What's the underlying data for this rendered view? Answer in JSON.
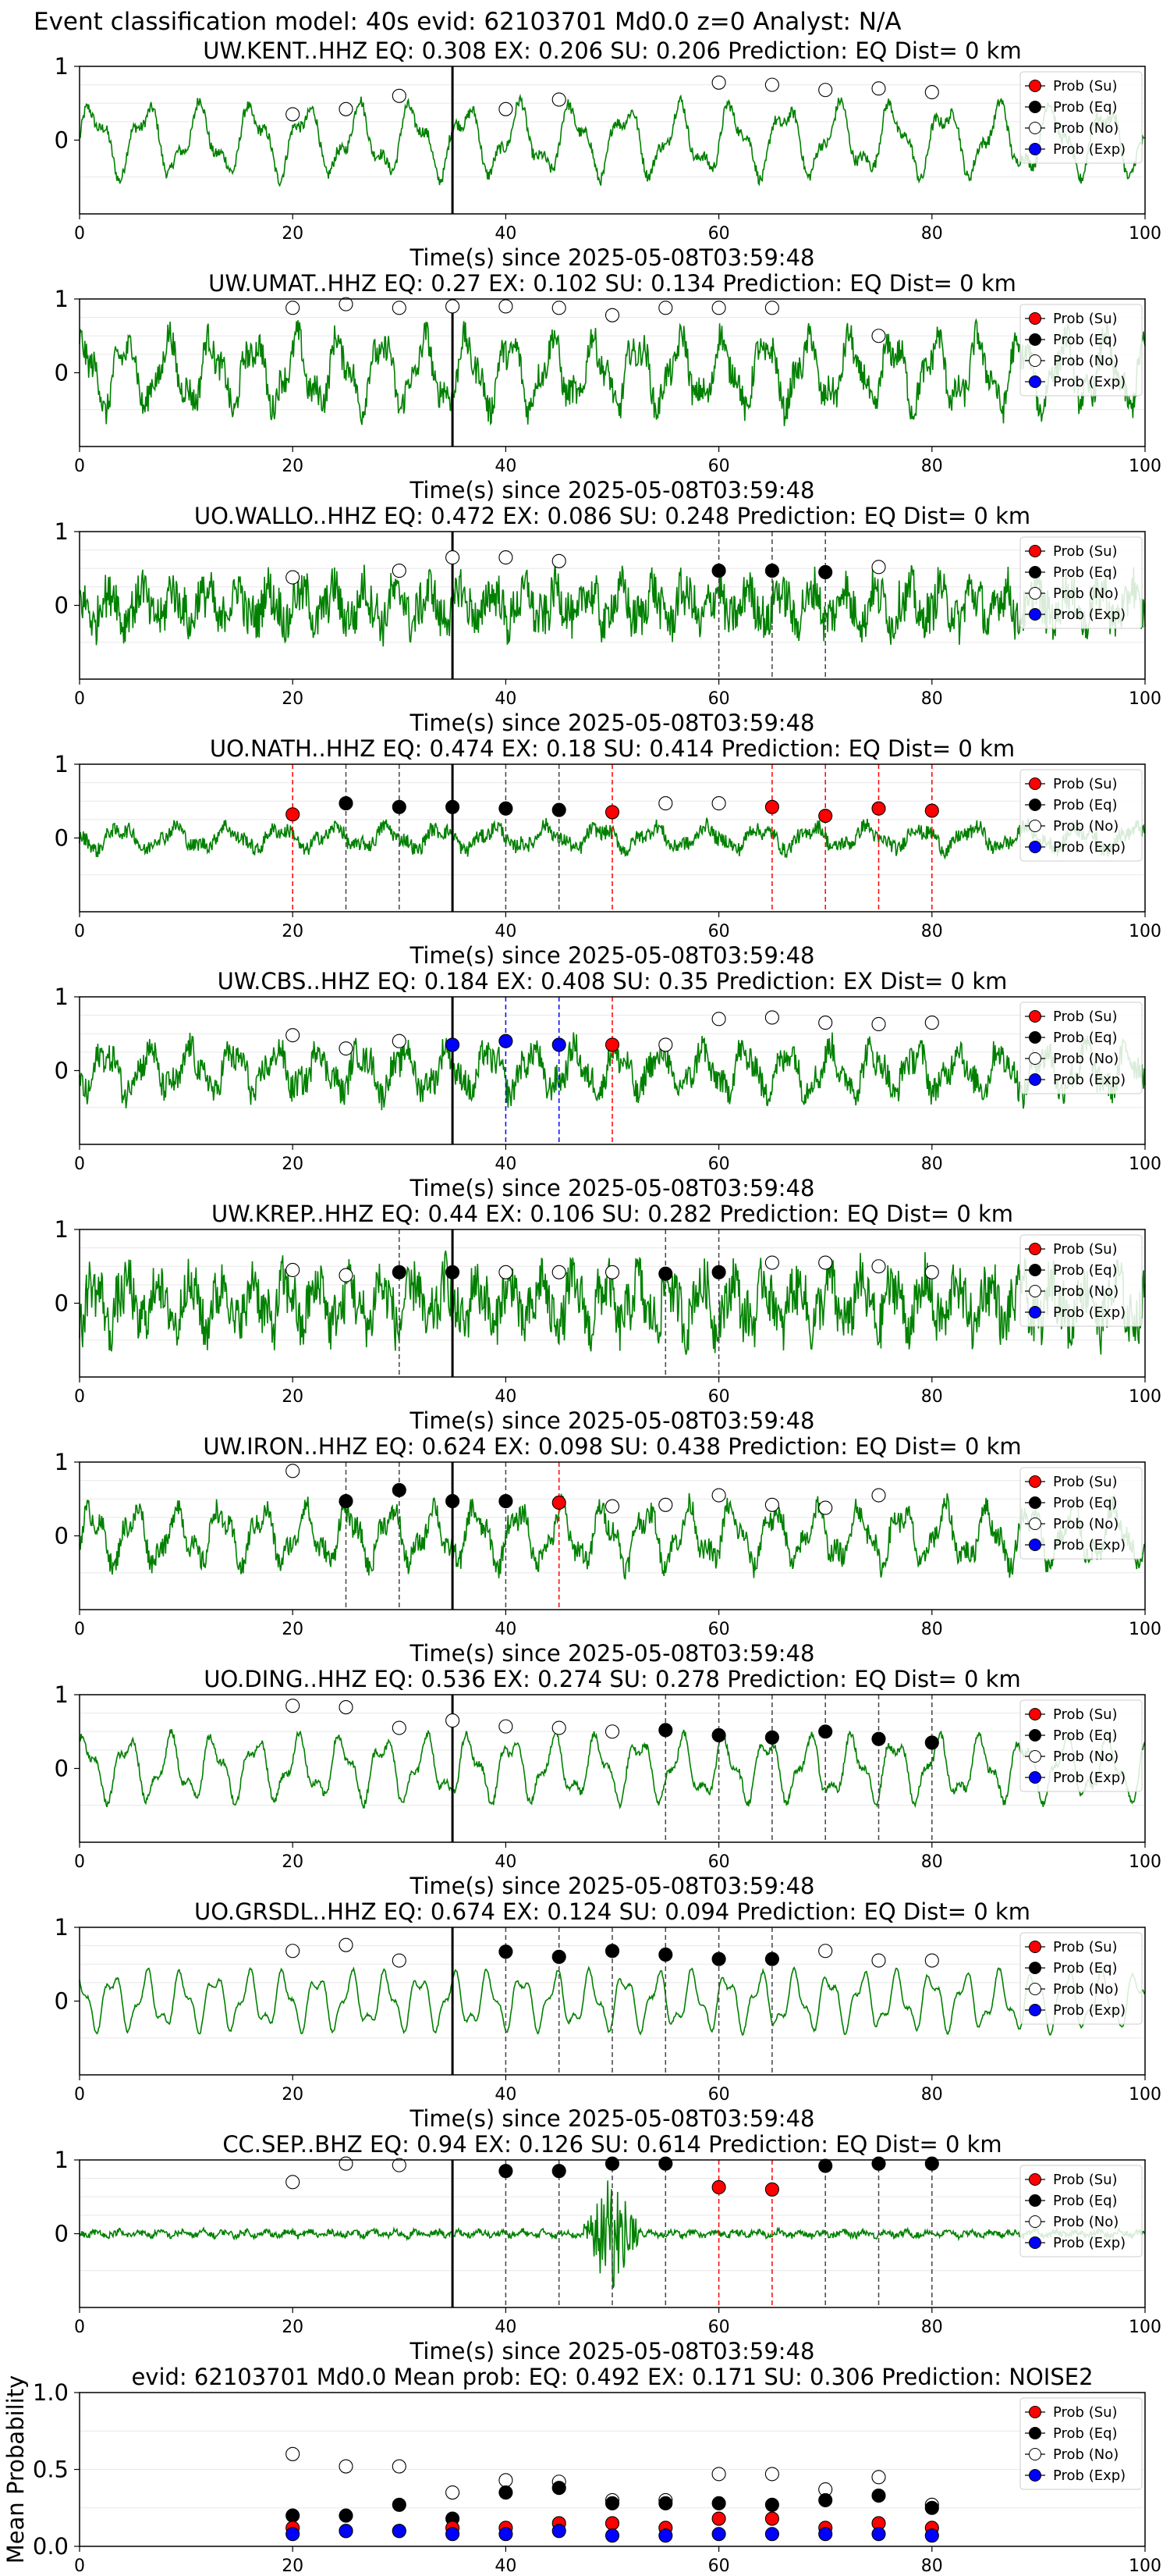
{
  "figure_title": "Event classification model: 40s evid: 62103701 Md0.0 z=0 Analyst: N/A",
  "legend_labels": [
    "Prob (Su)",
    "Prob (Eq)",
    "Prob (No)",
    "Prob (Exp)"
  ],
  "colors": {
    "su": "#ff0000",
    "eq": "#000000",
    "no": "#ffffff",
    "exp": "#0000ff",
    "wave": "#008000",
    "pick": "#000000"
  },
  "chart_data": [
    {
      "type": "line",
      "title": "UW.KENT..HHZ   EQ: 0.308  EX: 0.206  SU: 0.206   Prediction: EQ    Dist= 0 km",
      "xlabel": "Time(s) since 2025-05-08T03:59:48",
      "xlim": [
        0,
        100
      ],
      "xticks": [
        0,
        20,
        40,
        60,
        80,
        100
      ],
      "ylim": [
        -1,
        1
      ],
      "yticks": [
        0,
        1
      ],
      "pick_time": 35,
      "wave": {
        "amp": 0.55,
        "period": 5,
        "noise": 0.08,
        "spike": null
      },
      "no": [
        [
          20,
          0.35
        ],
        [
          25,
          0.42
        ],
        [
          30,
          0.6
        ],
        [
          40,
          0.42
        ],
        [
          45,
          0.55
        ],
        [
          60,
          0.78
        ],
        [
          65,
          0.75
        ],
        [
          70,
          0.68
        ],
        [
          75,
          0.7
        ],
        [
          80,
          0.65
        ]
      ],
      "eq": [],
      "su": [],
      "exp": []
    },
    {
      "type": "line",
      "title": "UW.UMAT..HHZ   EQ: 0.27  EX: 0.102  SU: 0.134   Prediction: EQ    Dist= 0 km",
      "xlabel": "Time(s) since 2025-05-08T03:59:48",
      "xlim": [
        0,
        100
      ],
      "xticks": [
        0,
        20,
        40,
        60,
        80,
        100
      ],
      "ylim": [
        -1,
        1
      ],
      "yticks": [
        0,
        1
      ],
      "pick_time": 35,
      "wave": {
        "amp": 0.55,
        "period": 4,
        "noise": 0.2,
        "spike": null
      },
      "no": [
        [
          20,
          0.88
        ],
        [
          25,
          0.93
        ],
        [
          30,
          0.88
        ],
        [
          35,
          0.9
        ],
        [
          40,
          0.9
        ],
        [
          45,
          0.88
        ],
        [
          50,
          0.78
        ],
        [
          55,
          0.88
        ],
        [
          60,
          0.88
        ],
        [
          65,
          0.88
        ],
        [
          75,
          0.5
        ]
      ],
      "eq": [],
      "su": [],
      "exp": []
    },
    {
      "type": "line",
      "title": "UO.WALLO..HHZ   EQ: 0.472  EX: 0.086  SU: 0.248   Prediction: EQ    Dist= 0 km",
      "xlabel": "Time(s) since 2025-05-08T03:59:48",
      "xlim": [
        0,
        100
      ],
      "xticks": [
        0,
        20,
        40,
        60,
        80,
        100
      ],
      "ylim": [
        -1,
        1
      ],
      "yticks": [
        0,
        1
      ],
      "pick_time": 35,
      "wave": {
        "amp": 0.3,
        "period": 3,
        "noise": 0.3,
        "spike": null
      },
      "no": [
        [
          20,
          0.38
        ],
        [
          30,
          0.47
        ],
        [
          35,
          0.65
        ],
        [
          40,
          0.65
        ],
        [
          45,
          0.6
        ],
        [
          75,
          0.52
        ]
      ],
      "eq": [
        [
          60,
          0.47
        ],
        [
          65,
          0.47
        ],
        [
          70,
          0.45
        ]
      ],
      "su": [],
      "exp": []
    },
    {
      "type": "line",
      "title": "UO.NATH..HHZ   EQ: 0.474  EX: 0.18  SU: 0.414   Prediction: EQ    Dist= 0 km",
      "xlabel": "Time(s) since 2025-05-08T03:59:48",
      "xlim": [
        0,
        100
      ],
      "xticks": [
        0,
        20,
        40,
        60,
        80,
        100
      ],
      "ylim": [
        -1,
        1
      ],
      "yticks": [
        0,
        1
      ],
      "pick_time": 35,
      "wave": {
        "amp": 0.18,
        "period": 5,
        "noise": 0.1,
        "spike": null
      },
      "no": [
        [
          55,
          0.47
        ],
        [
          60,
          0.47
        ]
      ],
      "eq": [
        [
          25,
          0.47
        ],
        [
          30,
          0.42
        ],
        [
          35,
          0.42
        ],
        [
          40,
          0.4
        ],
        [
          45,
          0.38
        ]
      ],
      "su": [
        [
          20,
          0.32
        ],
        [
          50,
          0.35
        ],
        [
          65,
          0.42
        ],
        [
          70,
          0.3
        ],
        [
          75,
          0.4
        ],
        [
          80,
          0.37
        ]
      ],
      "exp": []
    },
    {
      "type": "line",
      "title": "UW.CBS..HHZ   EQ: 0.184  EX: 0.408  SU: 0.35   Prediction: EX    Dist= 0 km",
      "xlabel": "Time(s) since 2025-05-08T03:59:48",
      "xlim": [
        0,
        100
      ],
      "xticks": [
        0,
        20,
        40,
        60,
        80,
        100
      ],
      "ylim": [
        -1,
        1
      ],
      "yticks": [
        0,
        1
      ],
      "pick_time": 35,
      "wave": {
        "amp": 0.35,
        "period": 4,
        "noise": 0.2,
        "spike": null
      },
      "no": [
        [
          20,
          0.48
        ],
        [
          25,
          0.3
        ],
        [
          30,
          0.4
        ],
        [
          55,
          0.35
        ],
        [
          60,
          0.7
        ],
        [
          65,
          0.72
        ],
        [
          70,
          0.65
        ],
        [
          75,
          0.63
        ],
        [
          80,
          0.65
        ]
      ],
      "eq": [],
      "su": [
        [
          50,
          0.35
        ]
      ],
      "exp": [
        [
          35,
          0.35
        ],
        [
          40,
          0.4
        ],
        [
          45,
          0.35
        ]
      ]
    },
    {
      "type": "line",
      "title": "UW.KREP..HHZ   EQ: 0.44  EX: 0.106  SU: 0.282   Prediction: EQ    Dist= 0 km",
      "xlabel": "Time(s) since 2025-05-08T03:59:48",
      "xlim": [
        0,
        100
      ],
      "xticks": [
        0,
        20,
        40,
        60,
        80,
        100
      ],
      "ylim": [
        -1,
        1
      ],
      "yticks": [
        0,
        1
      ],
      "pick_time": 35,
      "wave": {
        "amp": 0.4,
        "period": 3,
        "noise": 0.35,
        "spike": null
      },
      "no": [
        [
          20,
          0.45
        ],
        [
          25,
          0.38
        ],
        [
          40,
          0.42
        ],
        [
          45,
          0.42
        ],
        [
          50,
          0.42
        ],
        [
          65,
          0.55
        ],
        [
          70,
          0.55
        ],
        [
          75,
          0.5
        ],
        [
          80,
          0.42
        ]
      ],
      "eq": [
        [
          30,
          0.42
        ],
        [
          35,
          0.42
        ],
        [
          55,
          0.4
        ],
        [
          60,
          0.42
        ]
      ],
      "su": [],
      "exp": []
    },
    {
      "type": "line",
      "title": "UW.IRON..HHZ   EQ: 0.624  EX: 0.098  SU: 0.438   Prediction: EQ    Dist= 0 km",
      "xlabel": "Time(s) since 2025-05-08T03:59:48",
      "xlim": [
        0,
        100
      ],
      "xticks": [
        0,
        20,
        40,
        60,
        80,
        100
      ],
      "ylim": [
        -1,
        1
      ],
      "yticks": [
        0,
        1
      ],
      "pick_time": 35,
      "wave": {
        "amp": 0.45,
        "period": 4,
        "noise": 0.15,
        "spike": null
      },
      "no": [
        [
          20,
          0.88
        ],
        [
          50,
          0.4
        ],
        [
          55,
          0.42
        ],
        [
          60,
          0.55
        ],
        [
          65,
          0.42
        ],
        [
          70,
          0.38
        ],
        [
          75,
          0.55
        ]
      ],
      "eq": [
        [
          25,
          0.47
        ],
        [
          30,
          0.62
        ],
        [
          35,
          0.47
        ],
        [
          40,
          0.47
        ]
      ],
      "su": [
        [
          45,
          0.45
        ]
      ],
      "exp": []
    },
    {
      "type": "line",
      "title": "UO.DING..HHZ   EQ: 0.536  EX: 0.274  SU: 0.278   Prediction: EQ    Dist= 0 km",
      "xlabel": "Time(s) since 2025-05-08T03:59:48",
      "xlim": [
        0,
        100
      ],
      "xticks": [
        0,
        20,
        40,
        60,
        80,
        100
      ],
      "ylim": [
        -1,
        1
      ],
      "yticks": [
        0,
        1
      ],
      "pick_time": 35,
      "wave": {
        "amp": 0.5,
        "period": 4,
        "noise": 0.05,
        "spike": null
      },
      "no": [
        [
          20,
          0.85
        ],
        [
          25,
          0.83
        ],
        [
          30,
          0.55
        ],
        [
          35,
          0.65
        ],
        [
          40,
          0.57
        ],
        [
          45,
          0.55
        ],
        [
          50,
          0.5
        ]
      ],
      "eq": [
        [
          55,
          0.52
        ],
        [
          60,
          0.45
        ],
        [
          65,
          0.42
        ],
        [
          70,
          0.5
        ],
        [
          75,
          0.4
        ],
        [
          80,
          0.35
        ]
      ],
      "su": [],
      "exp": []
    },
    {
      "type": "line",
      "title": "UO.GRSDL..HHZ   EQ: 0.674  EX: 0.124  SU: 0.094   Prediction: EQ    Dist= 0 km",
      "xlabel": "Time(s) since 2025-05-08T03:59:48",
      "xlim": [
        0,
        100
      ],
      "xticks": [
        0,
        20,
        40,
        60,
        80,
        100
      ],
      "ylim": [
        -1,
        1
      ],
      "yticks": [
        0,
        1
      ],
      "pick_time": 35,
      "wave": {
        "amp": 0.45,
        "period": 3.2,
        "noise": 0.02,
        "spike": null
      },
      "no": [
        [
          20,
          0.68
        ],
        [
          25,
          0.76
        ],
        [
          30,
          0.55
        ],
        [
          70,
          0.68
        ],
        [
          75,
          0.55
        ],
        [
          80,
          0.55
        ]
      ],
      "eq": [
        [
          40,
          0.67
        ],
        [
          45,
          0.6
        ],
        [
          50,
          0.68
        ],
        [
          55,
          0.63
        ],
        [
          60,
          0.57
        ],
        [
          65,
          0.57
        ]
      ],
      "su": [],
      "exp": []
    },
    {
      "type": "line",
      "title": "CC.SEP..BHZ   EQ: 0.94  EX: 0.126  SU: 0.614   Prediction: EQ    Dist= 0 km",
      "xlabel": "Time(s) since 2025-05-08T03:59:48",
      "xlim": [
        0,
        100
      ],
      "xticks": [
        0,
        20,
        40,
        60,
        80,
        100
      ],
      "ylim": [
        -1,
        1
      ],
      "yticks": [
        0,
        1
      ],
      "pick_time": 35,
      "wave": {
        "amp": 0.04,
        "period": 2,
        "noise": 0.04,
        "spike": [
          50,
          0.8,
          3
        ]
      },
      "no": [
        [
          20,
          0.7
        ],
        [
          25,
          0.95
        ],
        [
          30,
          0.93
        ]
      ],
      "eq": [
        [
          40,
          0.85
        ],
        [
          45,
          0.85
        ],
        [
          50,
          0.95
        ],
        [
          55,
          0.95
        ],
        [
          70,
          0.92
        ],
        [
          75,
          0.95
        ],
        [
          80,
          0.95
        ]
      ],
      "su": [
        [
          60,
          0.63
        ],
        [
          65,
          0.6
        ]
      ],
      "exp": []
    },
    {
      "type": "scatter",
      "title": "evid: 62103701  Md0.0   Mean prob:   EQ: 0.492  EX: 0.171  SU: 0.306   Prediction: NOISE2",
      "ylabel": "Mean Probability",
      "xlim": [
        0,
        100
      ],
      "xticks": [
        0,
        20,
        40,
        60,
        80,
        100
      ],
      "ylim": [
        0,
        1
      ],
      "yticks": [
        "0.0",
        "0.5",
        "1.0"
      ],
      "pick_time": null,
      "no": [
        [
          20,
          0.6
        ],
        [
          25,
          0.52
        ],
        [
          30,
          0.52
        ],
        [
          35,
          0.35
        ],
        [
          40,
          0.43
        ],
        [
          45,
          0.42
        ],
        [
          50,
          0.3
        ],
        [
          55,
          0.3
        ],
        [
          60,
          0.47
        ],
        [
          65,
          0.47
        ],
        [
          70,
          0.37
        ],
        [
          75,
          0.45
        ],
        [
          80,
          0.27
        ]
      ],
      "eq": [
        [
          20,
          0.2
        ],
        [
          25,
          0.2
        ],
        [
          30,
          0.27
        ],
        [
          35,
          0.18
        ],
        [
          40,
          0.35
        ],
        [
          45,
          0.38
        ],
        [
          50,
          0.28
        ],
        [
          55,
          0.28
        ],
        [
          60,
          0.28
        ],
        [
          65,
          0.27
        ],
        [
          70,
          0.3
        ],
        [
          75,
          0.33
        ],
        [
          80,
          0.25
        ]
      ],
      "su": [
        [
          20,
          0.12
        ],
        [
          25,
          0.1
        ],
        [
          30,
          0.1
        ],
        [
          35,
          0.12
        ],
        [
          40,
          0.12
        ],
        [
          45,
          0.15
        ],
        [
          50,
          0.15
        ],
        [
          55,
          0.12
        ],
        [
          60,
          0.18
        ],
        [
          65,
          0.18
        ],
        [
          70,
          0.12
        ],
        [
          75,
          0.15
        ],
        [
          80,
          0.12
        ]
      ],
      "exp": [
        [
          20,
          0.08
        ],
        [
          25,
          0.1
        ],
        [
          30,
          0.1
        ],
        [
          35,
          0.08
        ],
        [
          40,
          0.08
        ],
        [
          45,
          0.1
        ],
        [
          50,
          0.07
        ],
        [
          55,
          0.07
        ],
        [
          60,
          0.08
        ],
        [
          65,
          0.08
        ],
        [
          70,
          0.08
        ],
        [
          75,
          0.08
        ],
        [
          80,
          0.07
        ]
      ]
    }
  ]
}
